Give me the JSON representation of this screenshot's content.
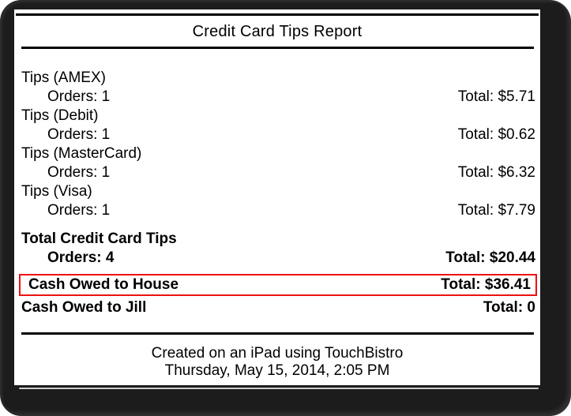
{
  "report": {
    "title": "Credit Card Tips Report",
    "sections": [
      {
        "label": "Tips (AMEX)",
        "orders": "Orders: 1",
        "total": "Total: $5.71"
      },
      {
        "label": "Tips (Debit)",
        "orders": "Orders: 1",
        "total": "Total: $0.62"
      },
      {
        "label": "Tips (MasterCard)",
        "orders": "Orders: 1",
        "total": "Total: $6.32"
      },
      {
        "label": "Tips (Visa)",
        "orders": "Orders: 1",
        "total": "Total: $7.79"
      }
    ],
    "summary": {
      "label": "Total Credit Card Tips",
      "orders": "Orders: 4",
      "total": "Total: $20.44"
    },
    "cash_rows": [
      {
        "label": "Cash Owed to House",
        "total": "Total: $36.41",
        "highlighted": true
      },
      {
        "label": "Cash Owed to Jill",
        "total": "Total: 0",
        "highlighted": false
      }
    ],
    "footer": {
      "line1": "Created on an iPad using TouchBistro",
      "line2": "Thursday, May 15, 2014, 2:05 PM"
    },
    "colors": {
      "highlight_border": "#ee1111",
      "text": "#000000",
      "paper": "#ffffff",
      "frame": "#1c1c1c"
    }
  }
}
